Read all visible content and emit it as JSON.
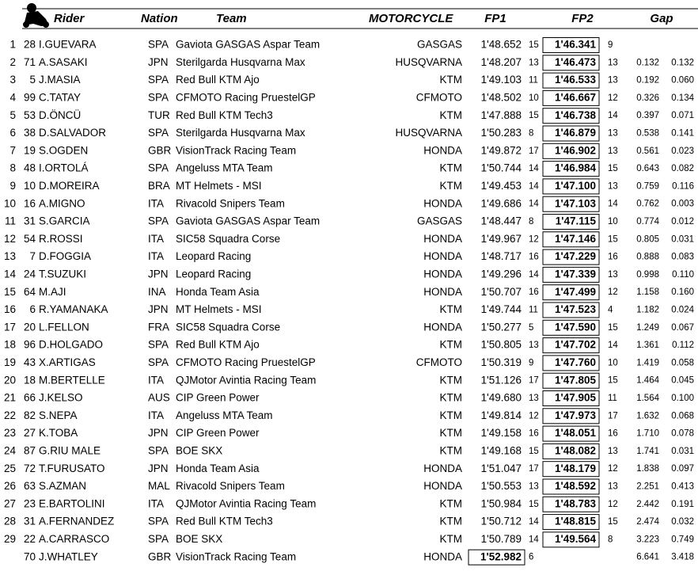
{
  "header": {
    "rider": "Rider",
    "nation": "Nation",
    "team": "Team",
    "motorcycle": "MOTORCYCLE",
    "fp1": "FP1",
    "fp2": "FP2",
    "gap": "Gap"
  },
  "table": {
    "rows": [
      [
        1,
        28,
        "I.GUEVARA",
        "SPA",
        "Gaviota GASGAS Aspar Team",
        "GASGAS",
        "1'48.652",
        15,
        "1'46.341",
        9,
        null,
        null
      ],
      [
        2,
        71,
        "A.SASAKI",
        "JPN",
        "Sterilgarda Husqvarna Max",
        "HUSQVARNA",
        "1'48.207",
        13,
        "1'46.473",
        13,
        "0.132",
        "0.132"
      ],
      [
        3,
        5,
        "J.MASIA",
        "SPA",
        "Red Bull KTM Ajo",
        "KTM",
        "1'49.103",
        11,
        "1'46.533",
        13,
        "0.192",
        "0.060"
      ],
      [
        4,
        99,
        "C.TATAY",
        "SPA",
        "CFMOTO Racing PruestelGP",
        "CFMOTO",
        "1'48.502",
        10,
        "1'46.667",
        12,
        "0.326",
        "0.134"
      ],
      [
        5,
        53,
        "D.ÖNCÜ",
        "TUR",
        "Red Bull KTM Tech3",
        "KTM",
        "1'47.888",
        15,
        "1'46.738",
        14,
        "0.397",
        "0.071"
      ],
      [
        6,
        38,
        "D.SALVADOR",
        "SPA",
        "Sterilgarda Husqvarna Max",
        "HUSQVARNA",
        "1'50.283",
        8,
        "1'46.879",
        13,
        "0.538",
        "0.141"
      ],
      [
        7,
        19,
        "S.OGDEN",
        "GBR",
        "VisionTrack Racing Team",
        "HONDA",
        "1'49.872",
        17,
        "1'46.902",
        13,
        "0.561",
        "0.023"
      ],
      [
        8,
        48,
        "I.ORTOLÁ",
        "SPA",
        "Angeluss MTA Team",
        "KTM",
        "1'50.744",
        14,
        "1'46.984",
        15,
        "0.643",
        "0.082"
      ],
      [
        9,
        10,
        "D.MOREIRA",
        "BRA",
        "MT Helmets - MSI",
        "KTM",
        "1'49.453",
        14,
        "1'47.100",
        13,
        "0.759",
        "0.116"
      ],
      [
        10,
        16,
        "A.MIGNO",
        "ITA",
        "Rivacold Snipers Team",
        "HONDA",
        "1'49.686",
        14,
        "1'47.103",
        14,
        "0.762",
        "0.003"
      ],
      [
        11,
        31,
        "S.GARCIA",
        "SPA",
        "Gaviota GASGAS Aspar Team",
        "GASGAS",
        "1'48.447",
        8,
        "1'47.115",
        10,
        "0.774",
        "0.012"
      ],
      [
        12,
        54,
        "R.ROSSI",
        "ITA",
        "SIC58 Squadra Corse",
        "HONDA",
        "1'49.967",
        12,
        "1'47.146",
        15,
        "0.805",
        "0.031"
      ],
      [
        13,
        7,
        "D.FOGGIA",
        "ITA",
        "Leopard Racing",
        "HONDA",
        "1'48.717",
        16,
        "1'47.229",
        16,
        "0.888",
        "0.083"
      ],
      [
        14,
        24,
        "T.SUZUKI",
        "JPN",
        "Leopard Racing",
        "HONDA",
        "1'49.296",
        14,
        "1'47.339",
        13,
        "0.998",
        "0.110"
      ],
      [
        15,
        64,
        "M.AJI",
        "INA",
        "Honda Team Asia",
        "HONDA",
        "1'50.707",
        16,
        "1'47.499",
        12,
        "1.158",
        "0.160"
      ],
      [
        16,
        6,
        "R.YAMANAKA",
        "JPN",
        "MT Helmets - MSI",
        "KTM",
        "1'49.744",
        11,
        "1'47.523",
        4,
        "1.182",
        "0.024"
      ],
      [
        17,
        20,
        "L.FELLON",
        "FRA",
        "SIC58 Squadra Corse",
        "HONDA",
        "1'50.277",
        5,
        "1'47.590",
        15,
        "1.249",
        "0.067"
      ],
      [
        18,
        96,
        "D.HOLGADO",
        "SPA",
        "Red Bull KTM Ajo",
        "KTM",
        "1'50.805",
        13,
        "1'47.702",
        14,
        "1.361",
        "0.112"
      ],
      [
        19,
        43,
        "X.ARTIGAS",
        "SPA",
        "CFMOTO Racing PruestelGP",
        "CFMOTO",
        "1'50.319",
        9,
        "1'47.760",
        10,
        "1.419",
        "0.058"
      ],
      [
        20,
        18,
        "M.BERTELLE",
        "ITA",
        "QJMotor Avintia Racing Team",
        "KTM",
        "1'51.126",
        17,
        "1'47.805",
        15,
        "1.464",
        "0.045"
      ],
      [
        21,
        66,
        "J.KELSO",
        "AUS",
        "CIP Green Power",
        "KTM",
        "1'49.680",
        13,
        "1'47.905",
        11,
        "1.564",
        "0.100"
      ],
      [
        22,
        82,
        "S.NEPA",
        "ITA",
        "Angeluss MTA Team",
        "KTM",
        "1'49.814",
        12,
        "1'47.973",
        17,
        "1.632",
        "0.068"
      ],
      [
        23,
        27,
        "K.TOBA",
        "JPN",
        "CIP Green Power",
        "KTM",
        "1'49.158",
        16,
        "1'48.051",
        16,
        "1.710",
        "0.078"
      ],
      [
        24,
        87,
        "G.RIU MALE",
        "SPA",
        "BOE SKX",
        "KTM",
        "1'49.168",
        15,
        "1'48.082",
        13,
        "1.741",
        "0.031"
      ],
      [
        25,
        72,
        "T.FURUSATO",
        "JPN",
        "Honda Team Asia",
        "HONDA",
        "1'51.047",
        17,
        "1'48.179",
        12,
        "1.838",
        "0.097"
      ],
      [
        26,
        63,
        "S.AZMAN",
        "MAL",
        "Rivacold Snipers Team",
        "HONDA",
        "1'50.553",
        13,
        "1'48.592",
        13,
        "2.251",
        "0.413"
      ],
      [
        27,
        23,
        "E.BARTOLINI",
        "ITA",
        "QJMotor Avintia Racing Team",
        "KTM",
        "1'50.984",
        15,
        "1'48.783",
        12,
        "2.442",
        "0.191"
      ],
      [
        28,
        31,
        "A.FERNANDEZ",
        "SPA",
        "Red Bull KTM Tech3",
        "KTM",
        "1'50.712",
        14,
        "1'48.815",
        15,
        "2.474",
        "0.032"
      ],
      [
        29,
        22,
        "A.CARRASCO",
        "SPA",
        "BOE SKX",
        "KTM",
        "1'50.789",
        14,
        "1'49.564",
        8,
        "3.223",
        "0.749"
      ],
      [
        null,
        70,
        "J.WHATLEY",
        "GBR",
        "VisionTrack Racing Team",
        "HONDA",
        "1'52.982",
        6,
        null,
        null,
        "6.641",
        "3.418"
      ]
    ]
  }
}
